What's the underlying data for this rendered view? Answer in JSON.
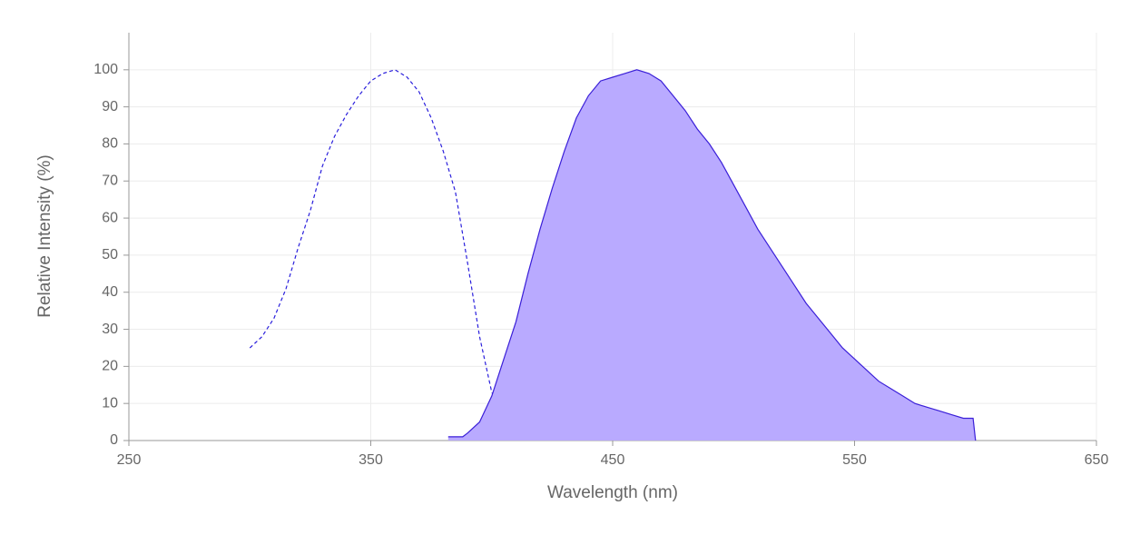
{
  "chart_data": {
    "type": "line",
    "x_label": "Wavelength (nm)",
    "y_label": "Relative Intensity (%)",
    "xlim": [
      250,
      650
    ],
    "xticks": [
      250,
      350,
      450,
      550,
      650
    ],
    "ylim": [
      0,
      110
    ],
    "yticks": [
      0,
      10,
      20,
      30,
      40,
      50,
      60,
      70,
      80,
      90,
      100
    ],
    "grid": true,
    "series": [
      {
        "color": "#2a1fdc",
        "dashed": true,
        "filled": false,
        "x": [
          300,
          305,
          310,
          315,
          320,
          325,
          330,
          335,
          340,
          345,
          350,
          355,
          360,
          365,
          370,
          375,
          380,
          385,
          390,
          395,
          400,
          405,
          410,
          415,
          420,
          425
        ],
        "values": [
          25,
          28,
          33,
          41,
          52,
          62,
          74,
          82,
          88,
          93,
          97,
          99,
          100,
          98,
          94,
          87,
          78,
          67,
          48,
          28,
          13,
          7,
          3,
          1,
          1,
          1
        ]
      },
      {
        "color": "#3a1fd8",
        "fill": "#b9aaff",
        "dashed": false,
        "filled": true,
        "x": [
          382,
          388,
          390,
          395,
          400,
          405,
          410,
          415,
          420,
          425,
          430,
          435,
          440,
          445,
          450,
          455,
          460,
          465,
          470,
          475,
          480,
          485,
          490,
          495,
          500,
          505,
          510,
          515,
          520,
          525,
          530,
          535,
          540,
          545,
          550,
          555,
          560,
          565,
          570,
          575,
          580,
          585,
          590,
          595,
          599,
          600
        ],
        "values": [
          1,
          1,
          2,
          5,
          12,
          22,
          32,
          45,
          57,
          68,
          78,
          87,
          93,
          97,
          98,
          99,
          100,
          99,
          97,
          93,
          89,
          84,
          80,
          75,
          69,
          63,
          57,
          52,
          47,
          42,
          37,
          33,
          29,
          25,
          22,
          19,
          16,
          14,
          12,
          10,
          9,
          8,
          7,
          6,
          6,
          0
        ]
      }
    ]
  }
}
